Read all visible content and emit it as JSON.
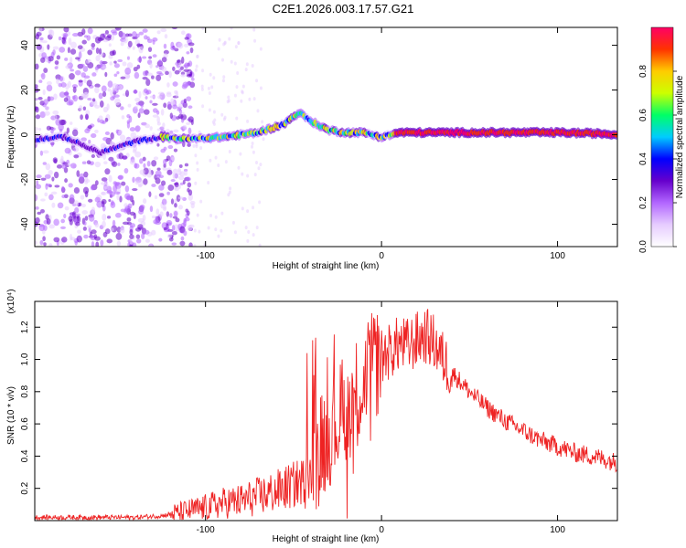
{
  "title": "C2E1.2026.003.17.57.G21",
  "chart_data": [
    {
      "type": "heatmap",
      "name": "spectrogram",
      "xlabel": "Height of straight line (km)",
      "ylabel": "Frequency (Hz)",
      "xlim": [
        -197,
        134
      ],
      "ylim": [
        -50,
        48
      ],
      "x_ticks": [
        -100,
        0,
        100
      ],
      "x_tick_labels": [
        "-100",
        "0",
        "100"
      ],
      "y_ticks": [
        -40,
        -20,
        0,
        20,
        40
      ],
      "y_tick_labels": [
        "-40",
        "-20",
        "0",
        "20",
        "40"
      ],
      "colorbar": {
        "label": "Normalized spectral amplitude",
        "range": [
          0,
          1
        ],
        "ticks": [
          0.0,
          0.2,
          0.4,
          0.6,
          0.8
        ],
        "tick_labels": [
          "0.0",
          "0.2",
          "0.4",
          "0.6",
          "0.8"
        ],
        "colors": [
          "#ffffff",
          "#e6ccff",
          "#b266ff",
          "#6600cc",
          "#0000ff",
          "#00ccff",
          "#00ff66",
          "#ccff00",
          "#ffcc00",
          "#ff3300",
          "#ff0066"
        ]
      },
      "ridge": {
        "x": [
          -197,
          -180,
          -160,
          -140,
          -125,
          -110,
          -90,
          -70,
          -55,
          -47,
          -40,
          -30,
          -20,
          -10,
          0,
          10,
          50,
          100,
          125,
          134
        ],
        "frequency": [
          -2,
          -1,
          -8,
          -3,
          -1,
          -2,
          -1,
          1,
          5,
          10,
          6,
          2,
          1,
          1,
          -1,
          1,
          1,
          1,
          0.5,
          0
        ]
      }
    },
    {
      "type": "line",
      "name": "snr",
      "xlabel": "Height of straight line (km)",
      "ylabel": "SNR (10 * v/v)",
      "scale_label": "(x10⁴)",
      "xlim": [
        -197,
        134
      ],
      "ylim": [
        0,
        1.36
      ],
      "x_ticks": [
        -100,
        0,
        100
      ],
      "x_tick_labels": [
        "-100",
        "0",
        "100"
      ],
      "y_ticks": [
        0.2,
        0.4,
        0.6,
        0.8,
        1.0,
        1.2
      ],
      "y_tick_labels": [
        "0.2",
        "0.4",
        "0.6",
        "0.8",
        "1.0",
        "1.2"
      ],
      "series": [
        {
          "name": "SNR",
          "color": "#ee2222",
          "x": [
            -197,
            -180,
            -160,
            -140,
            -125,
            -115,
            -100,
            -90,
            -80,
            -70,
            -60,
            -50,
            -45,
            -40,
            -35,
            -30,
            -25,
            -20,
            -15,
            -10,
            -5,
            0,
            5,
            10,
            15,
            20,
            25,
            30,
            35,
            40,
            50,
            60,
            70,
            80,
            90,
            100,
            110,
            120,
            134
          ],
          "y": [
            0.02,
            0.02,
            0.02,
            0.02,
            0.03,
            0.05,
            0.08,
            0.11,
            0.12,
            0.15,
            0.18,
            0.22,
            0.25,
            0.3,
            0.45,
            0.55,
            0.62,
            0.7,
            0.78,
            0.86,
            0.95,
            1.02,
            1.05,
            1.1,
            1.08,
            1.12,
            1.15,
            1.1,
            1.0,
            0.92,
            0.8,
            0.7,
            0.62,
            0.56,
            0.5,
            0.46,
            0.42,
            0.4,
            0.36
          ]
        }
      ]
    }
  ]
}
